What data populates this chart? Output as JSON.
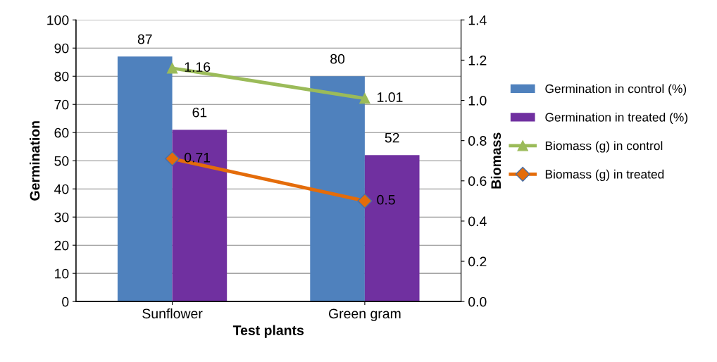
{
  "chart_data": {
    "type": "bar",
    "xlabel": "Test plants",
    "ylabel": "Germination",
    "y2label": "Biomass",
    "categories": [
      "Sunflower",
      "Green gram"
    ],
    "series": [
      {
        "name": "Germination in control (%)",
        "color": "#4f81bd",
        "values": [
          87,
          80
        ]
      },
      {
        "name": "Germination in treated (%)",
        "color": "#7030a0",
        "values": [
          61,
          52
        ]
      },
      {
        "name": "Biomass (g) in control",
        "color": "#9bbb59",
        "values": [
          1.16,
          1.01
        ],
        "type": "line",
        "axis": "y2",
        "marker": "triangle"
      },
      {
        "name": "Biomass (g) in treated",
        "color": "#e46c0a",
        "values": [
          0.71,
          0.5
        ],
        "type": "line",
        "axis": "y2",
        "marker": "diamond"
      }
    ],
    "ylim": [
      0,
      100
    ],
    "yticks": [
      0,
      10,
      20,
      30,
      40,
      50,
      60,
      70,
      80,
      90,
      100
    ],
    "y2lim": [
      0,
      1.4
    ],
    "y2ticks": [
      {
        "value": 0,
        "label": "0.0"
      },
      {
        "value": 0.2,
        "label": "0.2"
      },
      {
        "value": 0.4,
        "label": "0.4"
      },
      {
        "value": 0.6,
        "label": "0.6"
      },
      {
        "value": 0.8,
        "label": "0.8"
      },
      {
        "value": 1.0,
        "label": "1.0"
      },
      {
        "value": 1.2,
        "label": "1.2"
      },
      {
        "value": 1.4,
        "label": "1.4"
      }
    ],
    "grid": "y",
    "legend": "right",
    "data_labels": true
  }
}
